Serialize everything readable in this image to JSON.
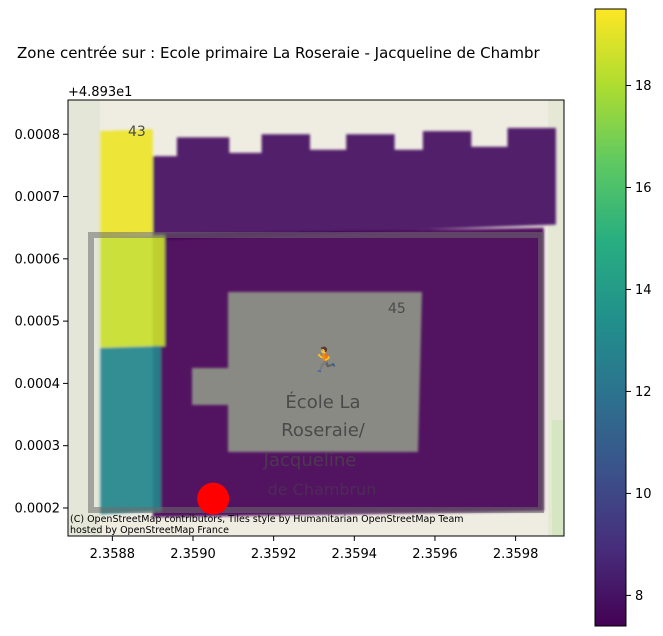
{
  "chart_data": {
    "type": "map",
    "title": "Zone centrée sur : Ecole primaire La Roseraie - Jacqueline de Chambr",
    "x_ticks": [
      "2.3588",
      "2.3590",
      "2.3592",
      "2.3594",
      "2.3596",
      "2.3598"
    ],
    "y_ticks": [
      "0.0002",
      "0.0003",
      "0.0004",
      "0.0005",
      "0.0006",
      "0.0007",
      "0.0008"
    ],
    "y_offset_label": "+4.893e1",
    "xlim": [
      2.35869,
      2.35992
    ],
    "ylim": [
      0.000155,
      0.000855
    ],
    "colorbar": {
      "ticks": [
        "8",
        "10",
        "12",
        "14",
        "16",
        "18"
      ],
      "range": [
        7.4,
        19.5
      ],
      "colormap": "viridis"
    },
    "marker": {
      "x": 2.35905,
      "y": 0.000215,
      "color": "#ff0000"
    },
    "polygons": [
      {
        "name": "top-block",
        "value": 7.9,
        "points": [
          [
            2.3589,
            0.000765
          ],
          [
            2.35896,
            0.000765
          ],
          [
            2.35896,
            0.000795
          ],
          [
            2.35909,
            0.000795
          ],
          [
            2.35909,
            0.00077
          ],
          [
            2.35917,
            0.00077
          ],
          [
            2.35917,
            0.0008
          ],
          [
            2.35929,
            0.0008
          ],
          [
            2.35929,
            0.000775
          ],
          [
            2.35938,
            0.000775
          ],
          [
            2.35938,
            0.0008
          ],
          [
            2.3595,
            0.0008
          ],
          [
            2.3595,
            0.000775
          ],
          [
            2.35957,
            0.000775
          ],
          [
            2.35957,
            0.000805
          ],
          [
            2.35969,
            0.000805
          ],
          [
            2.35969,
            0.00078
          ],
          [
            2.35978,
            0.00078
          ],
          [
            2.35978,
            0.00081
          ],
          [
            2.3599,
            0.00081
          ],
          [
            2.3599,
            0.000655
          ],
          [
            2.3589,
            0.00063
          ]
        ]
      },
      {
        "name": "main-block",
        "value": 7.5,
        "points": [
          [
            2.3589,
            0.00064
          ],
          [
            2.35987,
            0.00065
          ],
          [
            2.35987,
            0.000195
          ],
          [
            2.3589,
            0.000185
          ]
        ]
      },
      {
        "name": "yellow-top",
        "value": 19.2,
        "points": [
          [
            2.35877,
            0.000805
          ],
          [
            2.3589,
            0.000808
          ],
          [
            2.3589,
            0.00064
          ],
          [
            2.35877,
            0.000635
          ]
        ]
      },
      {
        "name": "yellow-mid",
        "value": 18.5,
        "points": [
          [
            2.35877,
            0.000635
          ],
          [
            2.35893,
            0.000638
          ],
          [
            2.35893,
            0.00046
          ],
          [
            2.35877,
            0.000457
          ]
        ]
      },
      {
        "name": "teal-block",
        "value": 12.9,
        "points": [
          [
            2.35877,
            0.000457
          ],
          [
            2.35892,
            0.00046
          ],
          [
            2.35892,
            0.000195
          ],
          [
            2.35877,
            0.00019
          ]
        ]
      }
    ],
    "map_labels": [
      "43",
      "45",
      "École La",
      "Roseraie/",
      "Jacqueline",
      "de Chambrun"
    ],
    "attribution": [
      "(C) OpenStreetMap contributors, Tiles style by Humanitarian OpenStreetMap Team",
      "hosted by OpenStreetMap France"
    ]
  }
}
